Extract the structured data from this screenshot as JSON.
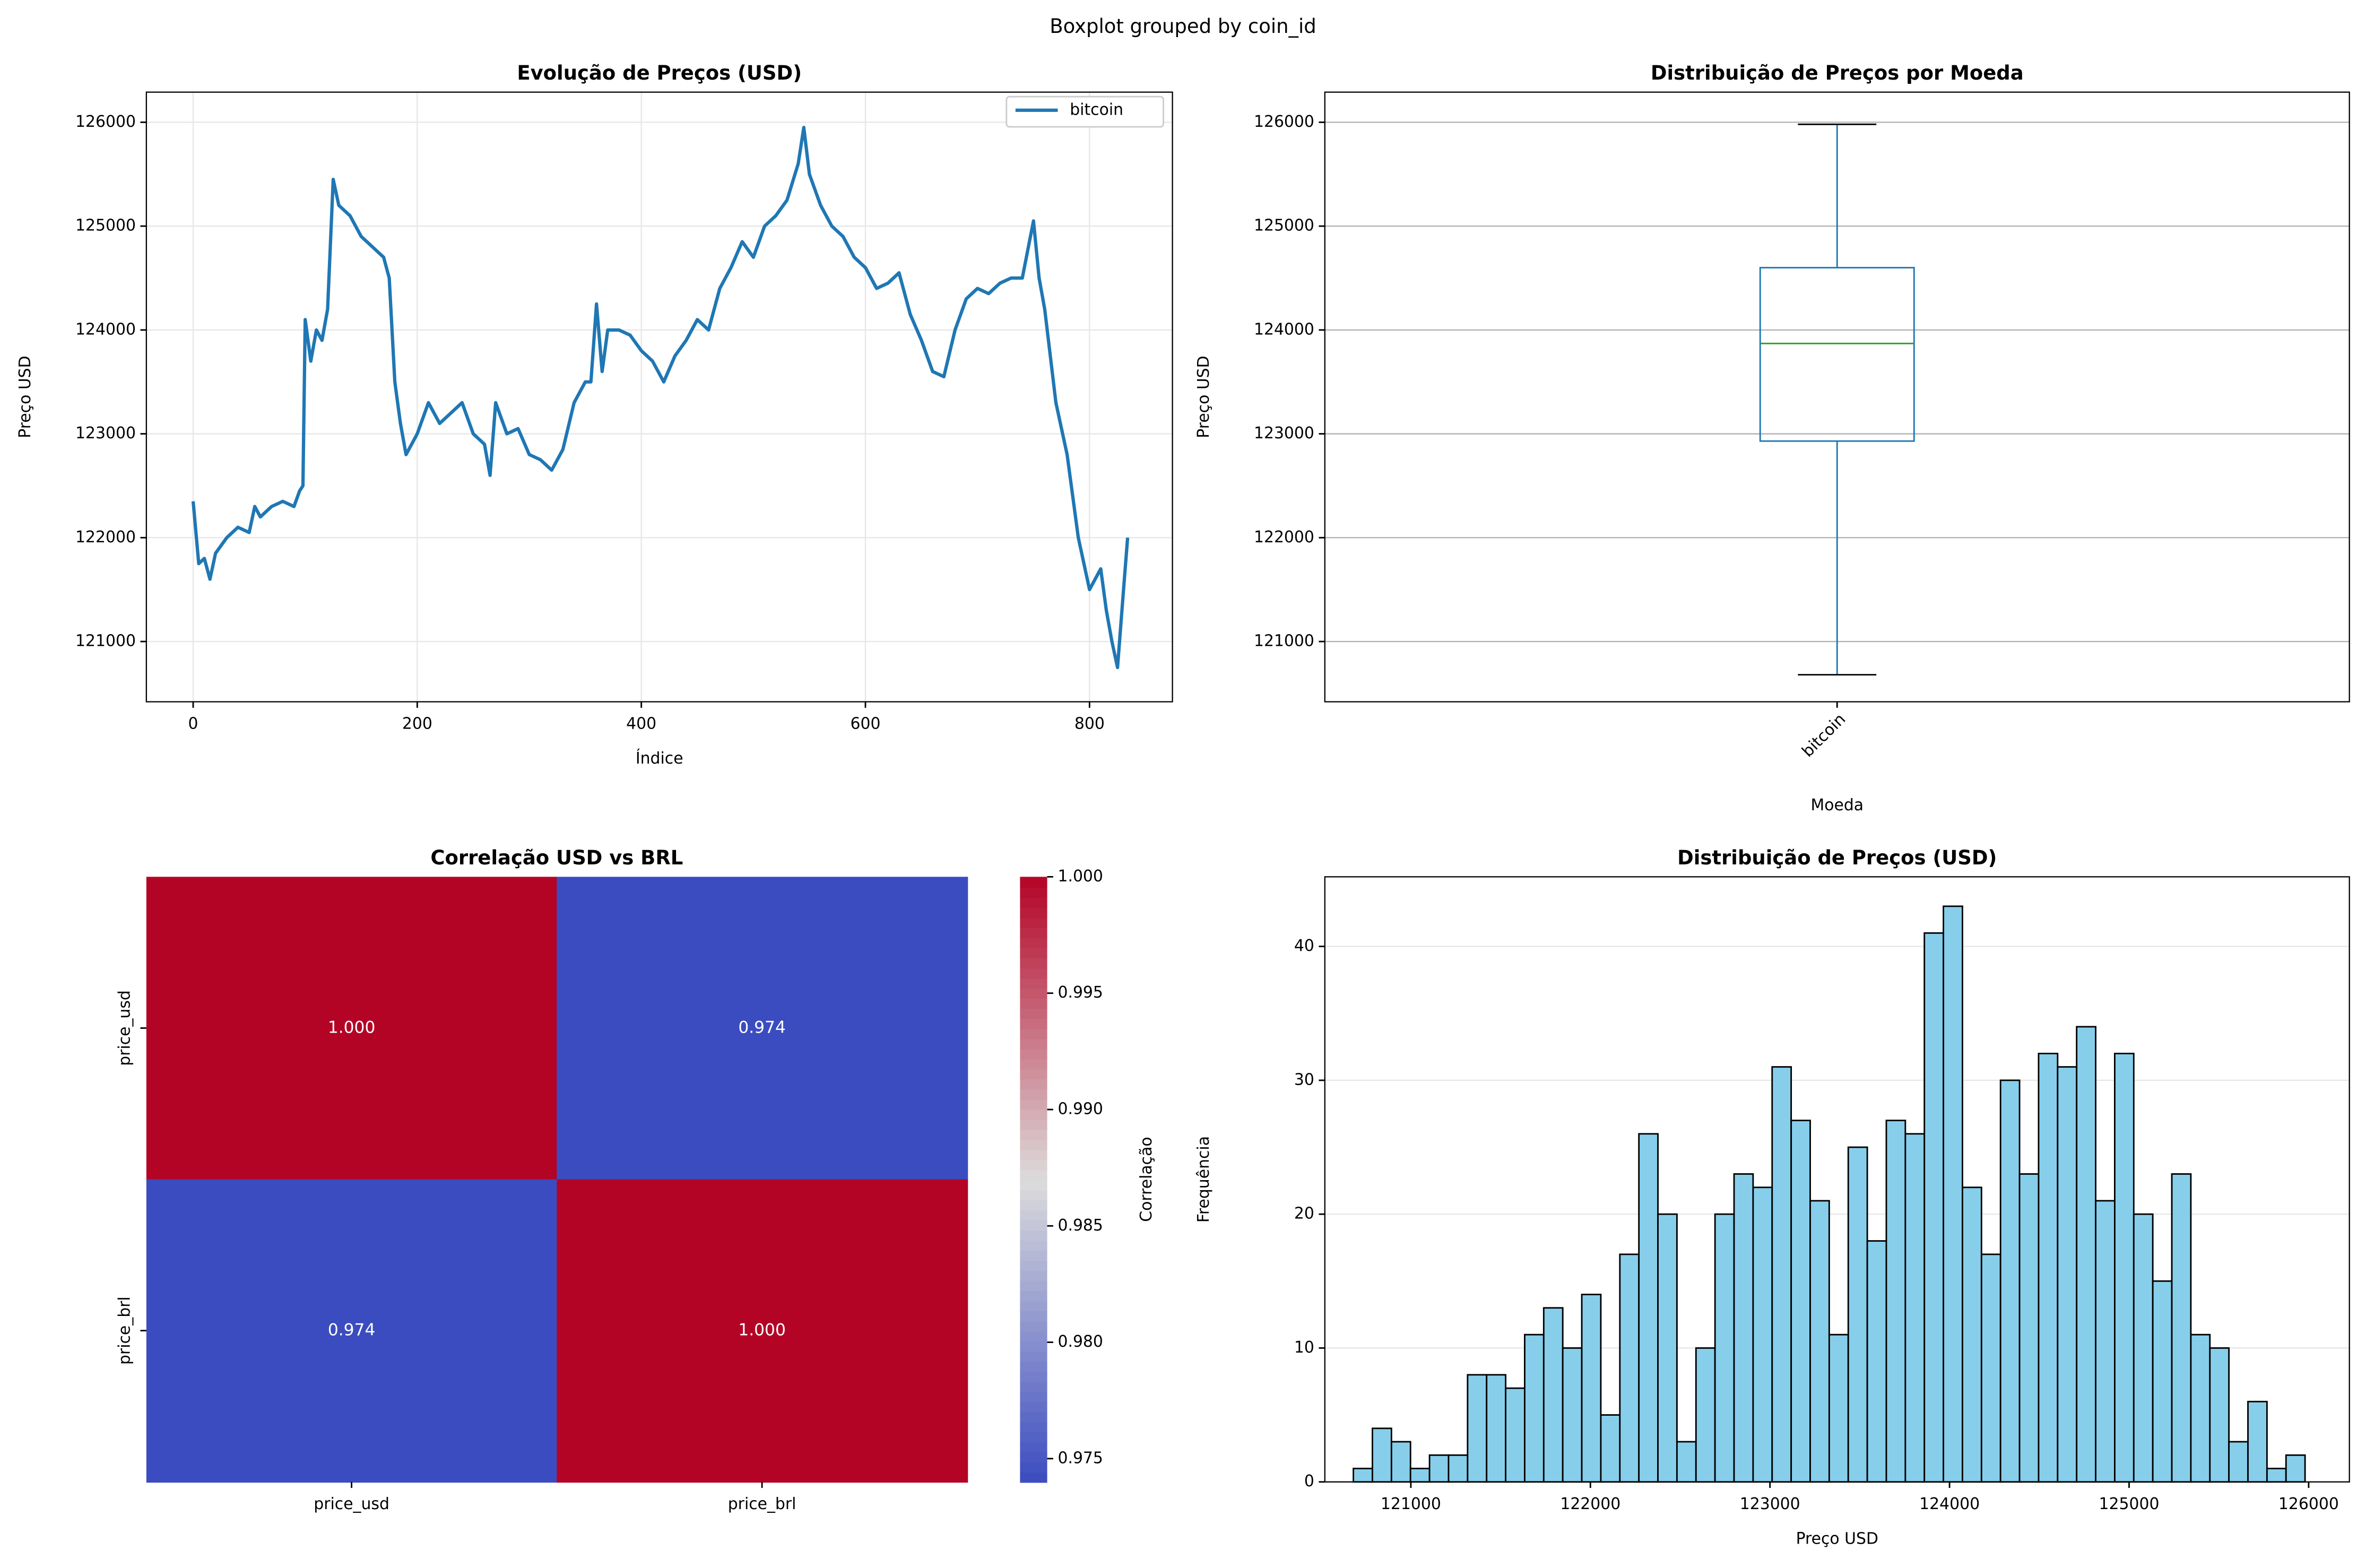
{
  "title": "Boxplot grouped by coin_id",
  "chart_data": [
    {
      "type": "line",
      "title": "Evolução de Preços (USD)",
      "xlabel": "Índice",
      "ylabel": "Preço USD",
      "x": [
        0,
        5,
        10,
        15,
        20,
        30,
        40,
        50,
        55,
        60,
        70,
        80,
        90,
        95,
        98,
        100,
        105,
        110,
        115,
        120,
        125,
        130,
        140,
        150,
        160,
        170,
        175,
        180,
        185,
        190,
        200,
        210,
        220,
        230,
        240,
        250,
        260,
        265,
        270,
        280,
        290,
        300,
        310,
        320,
        330,
        340,
        350,
        355,
        360,
        365,
        370,
        380,
        390,
        400,
        410,
        420,
        430,
        440,
        450,
        460,
        470,
        480,
        490,
        500,
        510,
        520,
        530,
        540,
        545,
        550,
        560,
        570,
        580,
        590,
        600,
        610,
        620,
        630,
        640,
        650,
        660,
        670,
        680,
        690,
        700,
        710,
        720,
        730,
        740,
        750,
        755,
        760,
        770,
        780,
        790,
        800,
        810,
        815,
        820,
        825,
        830,
        834
      ],
      "series": [
        {
          "name": "bitcoin",
          "color": "#1f77b4",
          "values": [
            122350,
            121750,
            121800,
            121600,
            121850,
            122000,
            122100,
            122050,
            122300,
            122200,
            122300,
            122350,
            122300,
            122450,
            122500,
            124100,
            123700,
            124000,
            123900,
            124200,
            125450,
            125200,
            125100,
            124900,
            124800,
            124700,
            124500,
            123500,
            123100,
            122800,
            123000,
            123300,
            123100,
            123200,
            123300,
            123000,
            122900,
            122600,
            123300,
            123000,
            123050,
            122800,
            122750,
            122650,
            122850,
            123300,
            123500,
            123500,
            124250,
            123600,
            124000,
            124000,
            123950,
            123800,
            123700,
            123500,
            123750,
            123900,
            124100,
            124000,
            124400,
            124600,
            124850,
            124700,
            125000,
            125100,
            125250,
            125600,
            125950,
            125500,
            125200,
            125000,
            124900,
            124700,
            124600,
            124400,
            124450,
            124550,
            124150,
            123900,
            123600,
            123550,
            124000,
            124300,
            124400,
            124350,
            124450,
            124500,
            124500,
            125050,
            124500,
            124200,
            123300,
            122800,
            122000,
            121500,
            121700,
            121300,
            121000,
            120750,
            121450,
            122000
          ]
        }
      ],
      "xlim": [
        -41.75,
        874
      ],
      "xticks": [
        0,
        200,
        400,
        600,
        800
      ],
      "ylim": [
        120420,
        126290
      ],
      "yticks": [
        121000,
        122000,
        123000,
        124000,
        125000,
        126000
      ],
      "grid": true,
      "legend": "upper right"
    },
    {
      "type": "box",
      "title": "Distribuição de Preços por Moeda",
      "xlabel": "Moeda",
      "ylabel": "Preço USD",
      "categories": [
        "bitcoin"
      ],
      "boxes": [
        {
          "whislo": 120680,
          "q1": 122930,
          "med": 123870,
          "q3": 124600,
          "whishi": 125980
        }
      ],
      "box_color": "#1f77b4",
      "median_color": "#2ca02c",
      "ylim": [
        120420,
        126290
      ],
      "yticks": [
        121000,
        122000,
        123000,
        124000,
        125000,
        126000
      ],
      "grid": true
    },
    {
      "type": "heatmap",
      "title": "Correlação USD vs BRL",
      "x_categories": [
        "price_usd",
        "price_brl"
      ],
      "y_categories": [
        "price_usd",
        "price_brl"
      ],
      "values": [
        [
          1.0,
          0.974
        ],
        [
          0.974,
          1.0
        ]
      ],
      "value_labels": [
        [
          "1.000",
          "0.974"
        ],
        [
          "0.974",
          "1.000"
        ]
      ],
      "colorbar_label": "Correlação",
      "colorbar_lim": [
        0.974,
        1.0
      ],
      "colorbar_ticks": [
        0.975,
        {
          "value": 0.98,
          "label": "0.980"
        },
        0.985,
        {
          "value": 0.99,
          "label": "0.990"
        },
        0.995,
        {
          "value": 1.0,
          "label": "1.000"
        }
      ],
      "cmap": [
        "#3b4cc0",
        "#dddcdc",
        "#b40426"
      ]
    },
    {
      "type": "histogram",
      "title": "Distribuição de Preços (USD)",
      "xlabel": "Preço USD",
      "ylabel": "Frequência",
      "bins": [
        120680,
        120786,
        120892,
        120998,
        121104,
        121210,
        121316,
        121422,
        121528,
        121634,
        121740,
        121846,
        121952,
        122058,
        122164,
        122270,
        122376,
        122482,
        122588,
        122694,
        122800,
        122906,
        123012,
        123118,
        123224,
        123330,
        123436,
        123542,
        123648,
        123754,
        123860,
        123966,
        124072,
        124178,
        124284,
        124390,
        124496,
        124602,
        124708,
        124814,
        124920,
        125026,
        125132,
        125238,
        125344,
        125450,
        125556,
        125662,
        125768,
        125874,
        125980
      ],
      "counts": [
        1,
        4,
        3,
        1,
        2,
        2,
        8,
        8,
        7,
        11,
        13,
        10,
        14,
        5,
        17,
        26,
        20,
        3,
        10,
        20,
        23,
        22,
        31,
        27,
        21,
        11,
        25,
        18,
        27,
        26,
        41,
        43,
        22,
        17,
        30,
        23,
        32,
        31,
        34,
        21,
        32,
        20,
        15,
        23,
        11,
        10,
        3,
        6,
        1,
        2
      ],
      "color": "#87ceeb",
      "xlim": [
        120521,
        126227
      ],
      "xticks": [
        121000,
        122000,
        123000,
        124000,
        125000,
        126000
      ],
      "ylim": [
        0,
        45.2
      ],
      "yticks": [
        0,
        10,
        20,
        30,
        40
      ],
      "grid": true
    }
  ]
}
